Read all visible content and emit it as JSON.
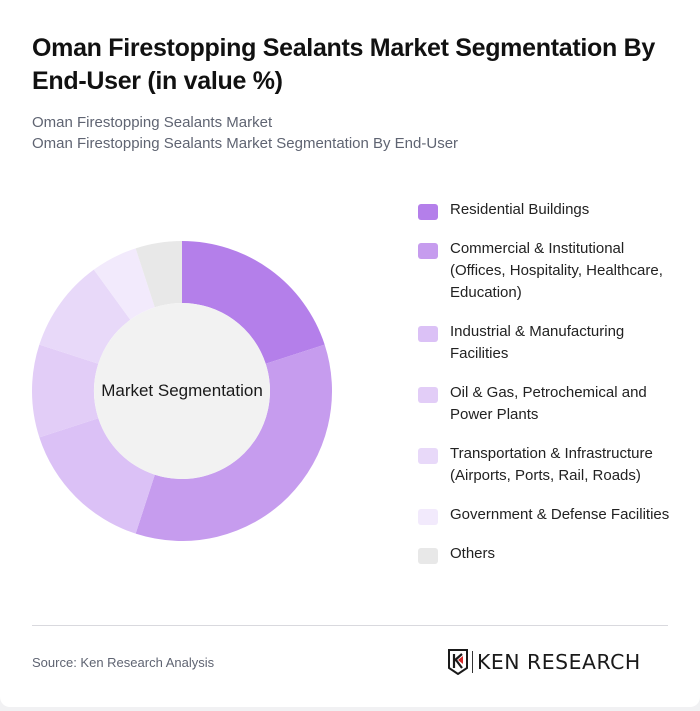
{
  "header": {
    "title": "Oman Firestopping Sealants Market Segmentation By End-User (in value %)",
    "breadcrumb_1": "Oman Firestopping Sealants Market",
    "breadcrumb_2": "Oman Firestopping Sealants Market Segmentation By End-User"
  },
  "chart": {
    "center_label": "Market Segmentation"
  },
  "legend": [
    {
      "label": "Residential Buildings",
      "color": "#b47fea"
    },
    {
      "label": "Commercial & Institutional (Offices, Hospitality, Healthcare, Education)",
      "color": "#c69cee"
    },
    {
      "label": "Industrial & Manufacturing Facilities",
      "color": "#dbc1f6"
    },
    {
      "label": "Oil & Gas, Petrochemical and Power Plants",
      "color": "#e2cdf7"
    },
    {
      "label": "Transportation & Infrastructure (Airports, Ports, Rail, Roads)",
      "color": "#e8d9f9"
    },
    {
      "label": "Government & Defense Facilities",
      "color": "#f2eafc"
    },
    {
      "label": "Others",
      "color": "#e8e8e8"
    }
  ],
  "footer": {
    "source": "Source: Ken Research Analysis",
    "logo_text": "KEN RESEARCH"
  },
  "chart_data": {
    "type": "pie",
    "subtype": "donut",
    "title": "Oman Firestopping Sealants Market Segmentation By End-User (in value %)",
    "center_label": "Market Segmentation",
    "categories": [
      "Residential Buildings",
      "Commercial & Institutional (Offices, Hospitality, Healthcare, Education)",
      "Industrial & Manufacturing Facilities",
      "Oil & Gas, Petrochemical and Power Plants",
      "Transportation & Infrastructure (Airports, Ports, Rail, Roads)",
      "Government & Defense Facilities",
      "Others"
    ],
    "values": [
      20,
      35,
      15,
      10,
      10,
      5,
      5
    ],
    "unit": "%",
    "colors": [
      "#b47fea",
      "#c69cee",
      "#dbc1f6",
      "#e2cdf7",
      "#e8d9f9",
      "#f2eafc",
      "#e8e8e8"
    ],
    "start_angle": "12 o'clock, clockwise",
    "legend_position": "right"
  }
}
